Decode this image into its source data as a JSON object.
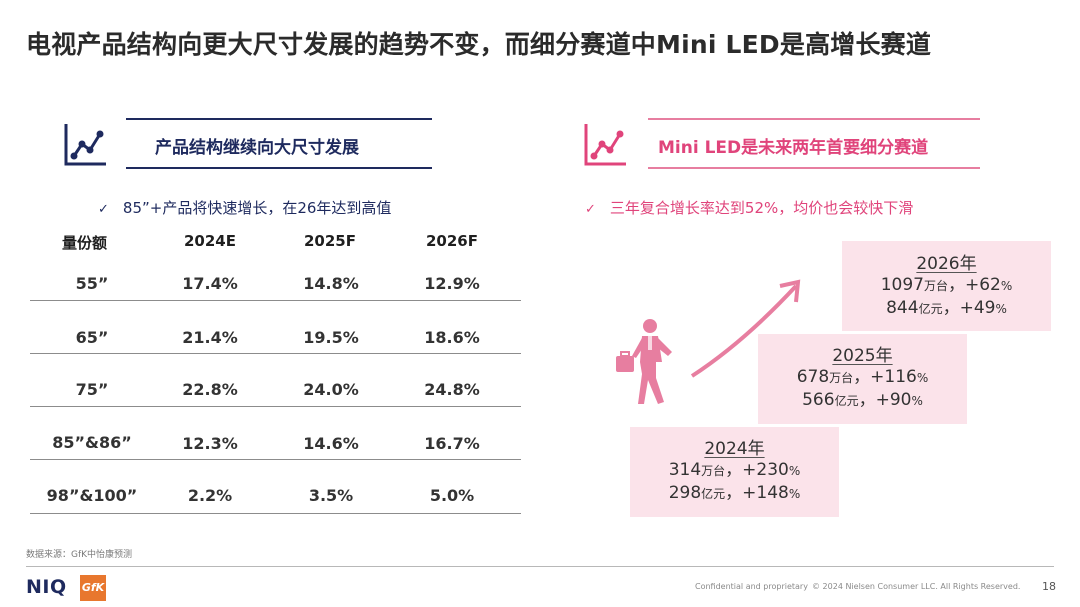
{
  "title": "电视产品结构向更大尺寸发展的趋势不变，而细分赛道中Mini LED是高增长赛道",
  "left": {
    "header": "产品结构继续向大尺寸发展",
    "bullet": "85”+产品将快速增长，在26年达到高值",
    "table": {
      "headers": [
        "量份额",
        "2024E",
        "2025F",
        "2026F"
      ],
      "rows": [
        [
          "55”",
          "17.4%",
          "14.8%",
          "12.9%"
        ],
        [
          "65”",
          "21.4%",
          "19.5%",
          "18.6%"
        ],
        [
          "75”",
          "22.8%",
          "24.0%",
          "24.8%"
        ],
        [
          "85”&86”",
          "12.3%",
          "14.6%",
          "16.7%"
        ],
        [
          "98”&100”",
          "2.2%",
          "3.5%",
          "5.0%"
        ]
      ]
    }
  },
  "right": {
    "header": "Mini LED是未来两年首要细分赛道",
    "bullet": "三年复合增长率达到52%，均价也会较快下滑",
    "boxes": [
      {
        "year": "2024年",
        "l1_num": "314",
        "l1_unit": "万台",
        "l1_growth": "，+230",
        "l1_pct": "%",
        "l2_num": "298",
        "l2_unit": "亿元",
        "l2_growth": "，+148",
        "l2_pct": "%"
      },
      {
        "year": "2025年",
        "l1_num": "678",
        "l1_unit": "万台",
        "l1_growth": "，+116",
        "l1_pct": "%",
        "l2_num": "566",
        "l2_unit": "亿元",
        "l2_growth": "，+90",
        "l2_pct": "%"
      },
      {
        "year": "2026年",
        "l1_num": "1097",
        "l1_unit": "万台",
        "l1_growth": "，+62",
        "l1_pct": "%",
        "l2_num": "844",
        "l2_unit": "亿元",
        "l2_growth": "，+49",
        "l2_pct": "%"
      }
    ]
  },
  "footer": {
    "source": "数据来源：GfK中怡康预测",
    "confidential": "Confidential and proprietary",
    "copyright": "© 2024 Nielsen Consumer LLC. All Rights Reserved.",
    "page": "18",
    "logo_niq": "NIQ",
    "logo_gfk": "GfK"
  },
  "colors": {
    "navy": "#1e2a5e",
    "pink": "#e0447b",
    "box_bg": "#fbe3ea"
  },
  "icons": [
    "growth-chart-icon",
    "growth-chart-icon",
    "checkmark-icon",
    "businessman-icon",
    "curved-arrow-icon"
  ]
}
